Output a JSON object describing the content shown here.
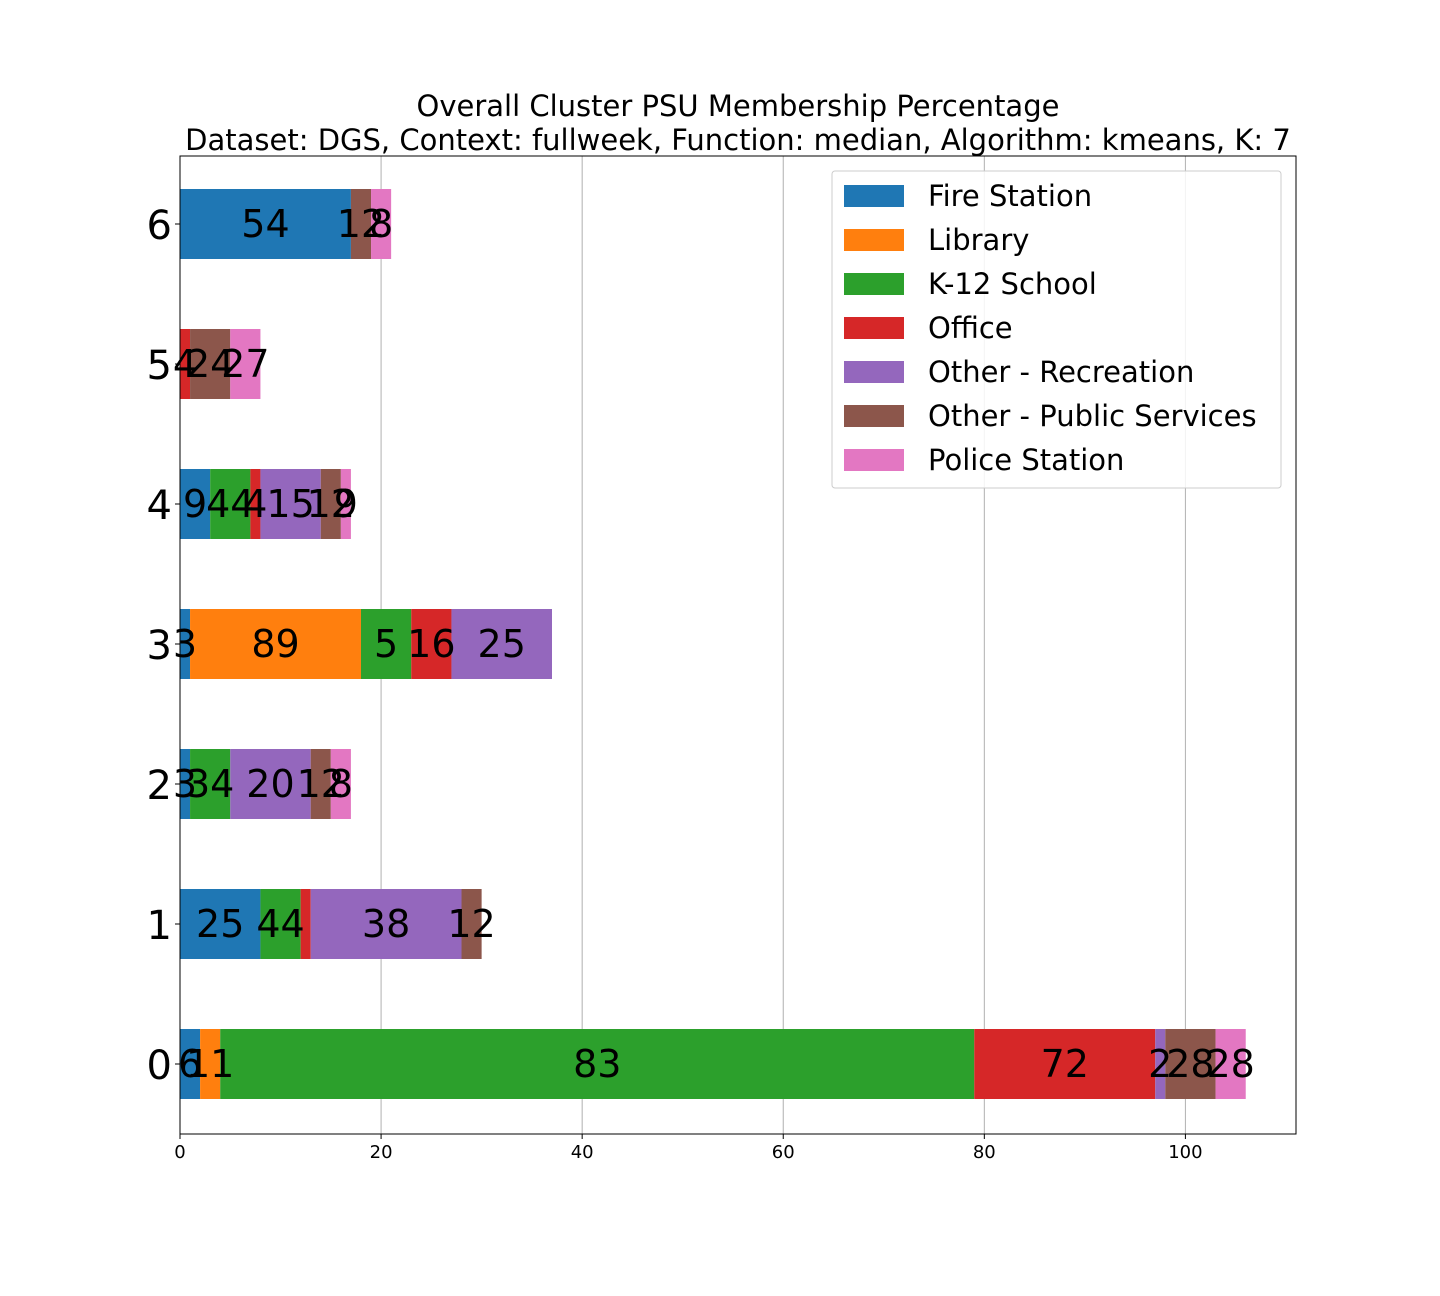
{
  "chart_data": {
    "type": "bar",
    "orientation": "horizontal",
    "stacked": true,
    "title": "Overall Cluster  PSU Membership Percentage",
    "subtitle": "Dataset: DGS, Context: fullweek, Function: median, Algorithm: kmeans, K: 7",
    "xlabel": "",
    "ylabel": "",
    "xlim": [
      0,
      111
    ],
    "x_ticks": [
      0,
      20,
      40,
      60,
      80,
      100
    ],
    "grid": "x",
    "legend_position": "top-right",
    "categories": [
      "0",
      "1",
      "2",
      "3",
      "4",
      "5",
      "6"
    ],
    "series": [
      {
        "name": "Fire Station",
        "color": "#1f77b4",
        "values": [
          2,
          8,
          1,
          1,
          3,
          0,
          17
        ],
        "labels": [
          "6",
          "25",
          "3",
          "3",
          "9",
          "",
          "54"
        ]
      },
      {
        "name": "Library",
        "color": "#ff7f0e",
        "values": [
          2,
          0,
          0,
          17,
          0,
          0,
          0
        ],
        "labels": [
          "11",
          "",
          "",
          "89",
          "",
          "",
          ""
        ]
      },
      {
        "name": "K-12 School",
        "color": "#2ca02c",
        "values": [
          75,
          4,
          4,
          5,
          4,
          0,
          0
        ],
        "labels": [
          "83",
          "44",
          "34",
          "5",
          "44",
          "",
          ""
        ]
      },
      {
        "name": "Office",
        "color": "#d62728",
        "values": [
          18,
          1,
          0,
          4,
          1,
          1,
          0
        ],
        "labels": [
          "72",
          "",
          "",
          "16",
          "4",
          "4",
          ""
        ]
      },
      {
        "name": "Other - Recreation",
        "color": "#9467bd",
        "values": [
          1,
          15,
          8,
          10,
          6,
          0,
          0
        ],
        "labels": [
          "2",
          "38",
          "20",
          "25",
          "15",
          "",
          ""
        ]
      },
      {
        "name": "Other - Public Services",
        "color": "#8c564b",
        "values": [
          5,
          2,
          2,
          0,
          2,
          4,
          2
        ],
        "labels": [
          "28",
          "12",
          "12",
          "",
          "12",
          "24",
          "12"
        ]
      },
      {
        "name": "Police Station",
        "color": "#e377c2",
        "values": [
          3,
          0,
          2,
          0,
          1,
          3,
          2
        ],
        "labels": [
          "28",
          "",
          "8",
          "",
          "9",
          "27",
          "8"
        ]
      }
    ]
  }
}
